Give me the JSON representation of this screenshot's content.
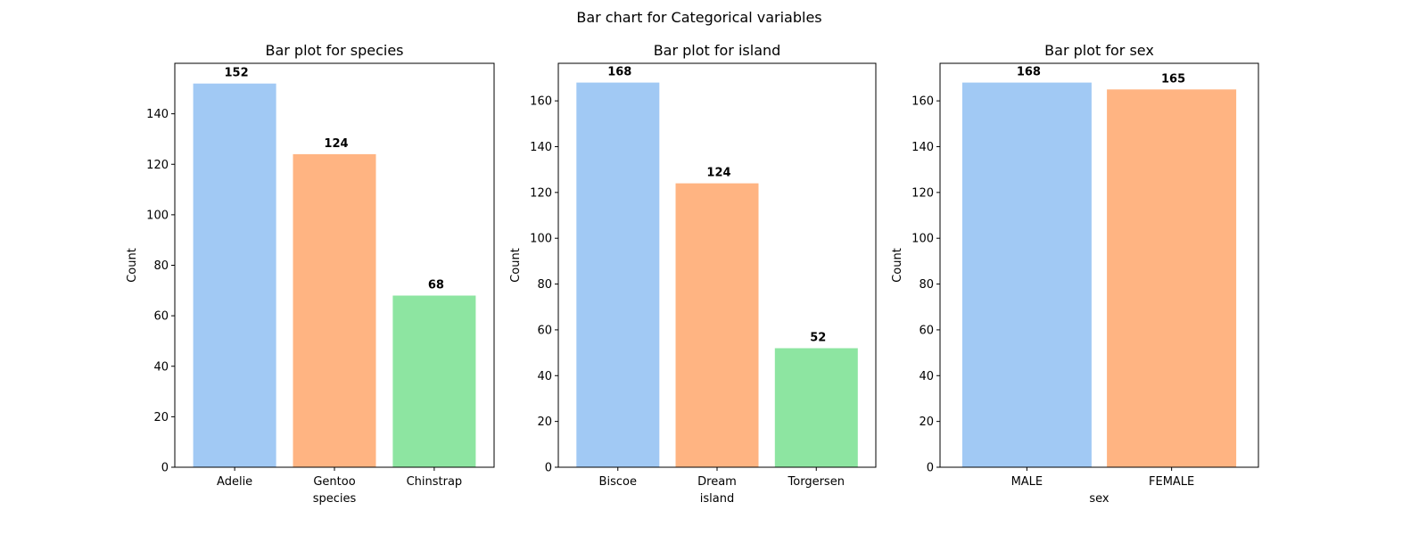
{
  "figure": {
    "suptitle": "Bar chart for Categorical variables"
  },
  "chart_data": [
    {
      "type": "bar",
      "title": "Bar plot for species",
      "xlabel": "species",
      "ylabel": "Count",
      "categories": [
        "Adelie",
        "Gentoo",
        "Chinstrap"
      ],
      "values": [
        152,
        124,
        68
      ],
      "colors": [
        "#a1c9f4",
        "#ffb482",
        "#8de5a1"
      ],
      "ylim": [
        0,
        160
      ],
      "yticks": [
        0,
        20,
        40,
        60,
        80,
        100,
        120,
        140
      ],
      "data_labels": [
        "152",
        "124",
        "68"
      ],
      "grid": false
    },
    {
      "type": "bar",
      "title": "Bar plot for island",
      "xlabel": "island",
      "ylabel": "Count",
      "categories": [
        "Biscoe",
        "Dream",
        "Torgersen"
      ],
      "values": [
        168,
        124,
        52
      ],
      "colors": [
        "#a1c9f4",
        "#ffb482",
        "#8de5a1"
      ],
      "ylim": [
        0,
        176.4
      ],
      "yticks": [
        0,
        20,
        40,
        60,
        80,
        100,
        120,
        140,
        160
      ],
      "data_labels": [
        "168",
        "124",
        "52"
      ],
      "grid": false
    },
    {
      "type": "bar",
      "title": "Bar plot for sex",
      "xlabel": "sex",
      "ylabel": "Count",
      "categories": [
        "MALE",
        "FEMALE"
      ],
      "values": [
        168,
        165
      ],
      "colors": [
        "#a1c9f4",
        "#ffb482"
      ],
      "ylim": [
        0,
        176.4
      ],
      "yticks": [
        0,
        20,
        40,
        60,
        80,
        100,
        120,
        140,
        160
      ],
      "data_labels": [
        "168",
        "165"
      ],
      "grid": false
    }
  ]
}
